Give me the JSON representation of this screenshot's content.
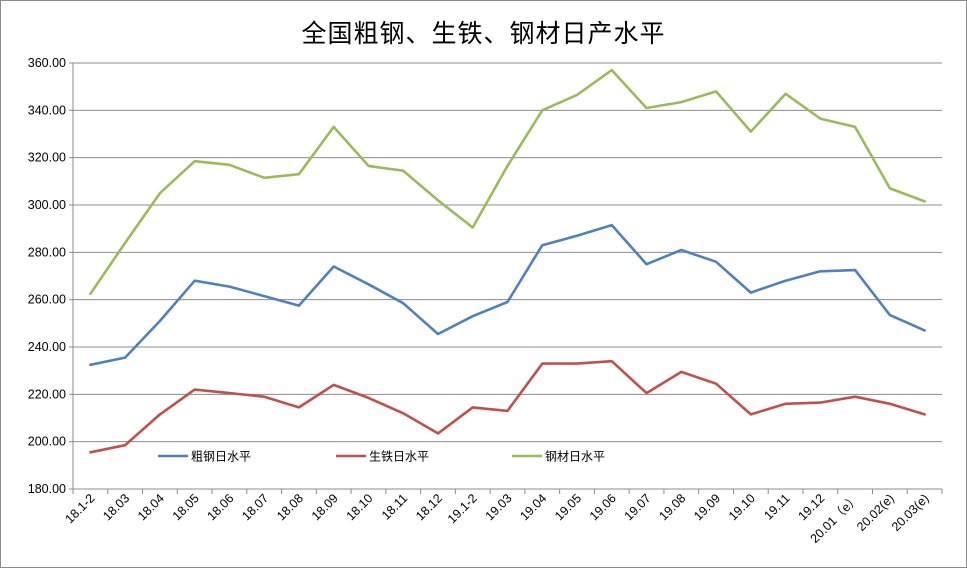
{
  "chart_data": {
    "type": "line",
    "title": "全国粗钢、生铁、钢材日产水平",
    "xlabel": "",
    "ylabel": "",
    "ylim": [
      180,
      360
    ],
    "yticks": [
      "180.00",
      "200.00",
      "220.00",
      "240.00",
      "260.00",
      "280.00",
      "300.00",
      "320.00",
      "340.00",
      "360.00"
    ],
    "grid": "horizontal",
    "legend_position": "inside-lower-left",
    "categories": [
      "18.1-2",
      "18.03",
      "18.04",
      "18.05",
      "18.06",
      "18.07",
      "18.08",
      "18.09",
      "18.10",
      "18.11",
      "18.12",
      "19.1-2",
      "19.03",
      "19.04",
      "19.05",
      "19.06",
      "19.07",
      "19.08",
      "19.09",
      "19.10",
      "19.11",
      "19.12",
      "20.01（e）",
      "20.02(e)",
      "20.03(e)"
    ],
    "series": [
      {
        "name": "粗钢日水平",
        "color": "#4f81bd",
        "values": [
          232.5,
          235.5,
          251.0,
          268.0,
          265.5,
          261.5,
          257.5,
          274.0,
          266.5,
          258.5,
          245.5,
          253.0,
          259.0,
          283.0,
          287.0,
          291.5,
          275.0,
          281.0,
          276.0,
          263.0,
          268.0,
          272.0,
          272.5,
          253.5,
          247.0
        ]
      },
      {
        "name": "生铁日水平",
        "color": "#c0504d",
        "values": [
          195.5,
          198.5,
          211.5,
          222.0,
          220.5,
          219.0,
          214.5,
          224.0,
          218.5,
          212.0,
          203.5,
          214.5,
          213.0,
          233.0,
          233.0,
          234.0,
          220.5,
          229.5,
          224.5,
          211.5,
          216.0,
          216.5,
          219.0,
          216.0,
          211.5
        ]
      },
      {
        "name": "钢材日水平",
        "color": "#9bbb59",
        "values": [
          262.5,
          284.0,
          305.0,
          318.5,
          317.0,
          311.5,
          313.0,
          333.0,
          316.5,
          314.5,
          302.0,
          290.5,
          316.5,
          340.0,
          346.5,
          357.0,
          341.0,
          343.5,
          348.0,
          331.0,
          347.0,
          336.5,
          333.0,
          307.0,
          301.5
        ]
      }
    ]
  }
}
